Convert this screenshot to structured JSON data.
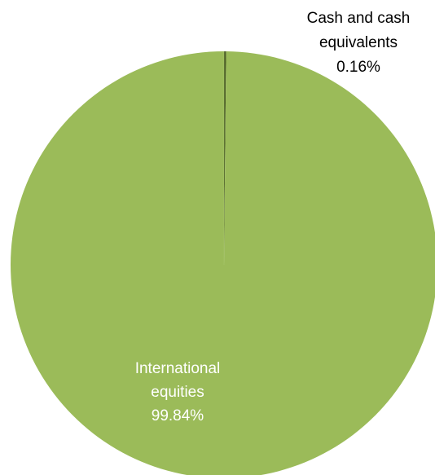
{
  "chart_data": {
    "type": "pie",
    "title": "",
    "slices": [
      {
        "label_lines": [
          "Cash and cash",
          "equivalents"
        ],
        "value_label": "0.16%",
        "value": 0.16,
        "color": "#4f6228"
      },
      {
        "label_lines": [
          "International",
          "equities"
        ],
        "value_label": "99.84%",
        "value": 99.84,
        "color": "#9bbb59"
      }
    ],
    "label_colors": {
      "outside": "#000000",
      "inside": "#ffffff"
    },
    "start_angle": "12 o'clock",
    "direction": "clockwise",
    "legend": "none"
  }
}
